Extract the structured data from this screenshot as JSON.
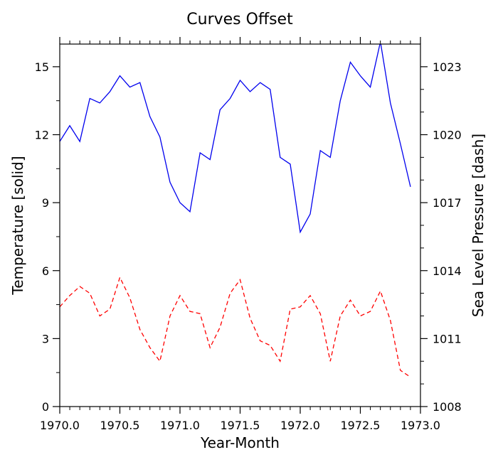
{
  "chart_data": {
    "type": "line",
    "title": "Curves Offset",
    "xlabel": "Year-Month",
    "ylabel_left": "Temperature [solid]",
    "ylabel_right": "Sea Level Pressure [dash]",
    "xlim": [
      1970.0,
      1973.0
    ],
    "ylim_left": [
      0,
      16
    ],
    "ylim_right": [
      1008,
      1024
    ],
    "x_ticks": [
      "1970.0",
      "1970.5",
      "1971.0",
      "1971.5",
      "1972.0",
      "1972.5",
      "1973.0"
    ],
    "y_ticks_left": [
      "0",
      "3",
      "6",
      "9",
      "12",
      "15"
    ],
    "y_ticks_right": [
      "1008",
      "1011",
      "1014",
      "1017",
      "1020",
      "1023"
    ],
    "grid": false,
    "x": [
      1970.0,
      1970.083,
      1970.167,
      1970.25,
      1970.333,
      1970.417,
      1970.5,
      1970.583,
      1970.667,
      1970.75,
      1970.833,
      1970.917,
      1971.0,
      1971.083,
      1971.167,
      1971.25,
      1971.333,
      1971.417,
      1971.5,
      1971.583,
      1971.667,
      1971.75,
      1971.833,
      1971.917,
      1972.0,
      1972.083,
      1972.167,
      1972.25,
      1972.333,
      1972.417,
      1972.5,
      1972.583,
      1972.667,
      1972.75,
      1972.833,
      1972.917
    ],
    "series": [
      {
        "axis": "left",
        "style": "solid",
        "color": "#0000ee",
        "values": [
          11.7,
          12.4,
          11.7,
          13.6,
          13.4,
          13.9,
          14.6,
          14.1,
          14.3,
          12.8,
          11.9,
          9.9,
          9.0,
          8.6,
          11.2,
          10.9,
          13.1,
          13.6,
          14.4,
          13.9,
          14.3,
          14.0,
          11.0,
          10.7,
          7.7,
          8.5,
          11.3,
          11.0,
          13.5,
          15.2,
          14.6,
          14.1,
          16.1,
          13.4,
          11.6,
          9.7
        ]
      },
      {
        "axis": "right",
        "style": "dashed",
        "color": "#ff0000",
        "values": [
          1012.4,
          1012.9,
          1013.3,
          1013.0,
          1012.0,
          1012.3,
          1013.7,
          1012.8,
          1011.4,
          1010.6,
          1010.0,
          1012.0,
          1012.9,
          1012.2,
          1012.1,
          1010.6,
          1011.5,
          1013.0,
          1013.6,
          1011.9,
          1010.9,
          1010.7,
          1010.0,
          1012.3,
          1012.4,
          1012.9,
          1012.1,
          1010.0,
          1012.0,
          1012.7,
          1012.0,
          1012.2,
          1013.1,
          1011.8,
          1009.6,
          1009.3
        ]
      }
    ]
  }
}
